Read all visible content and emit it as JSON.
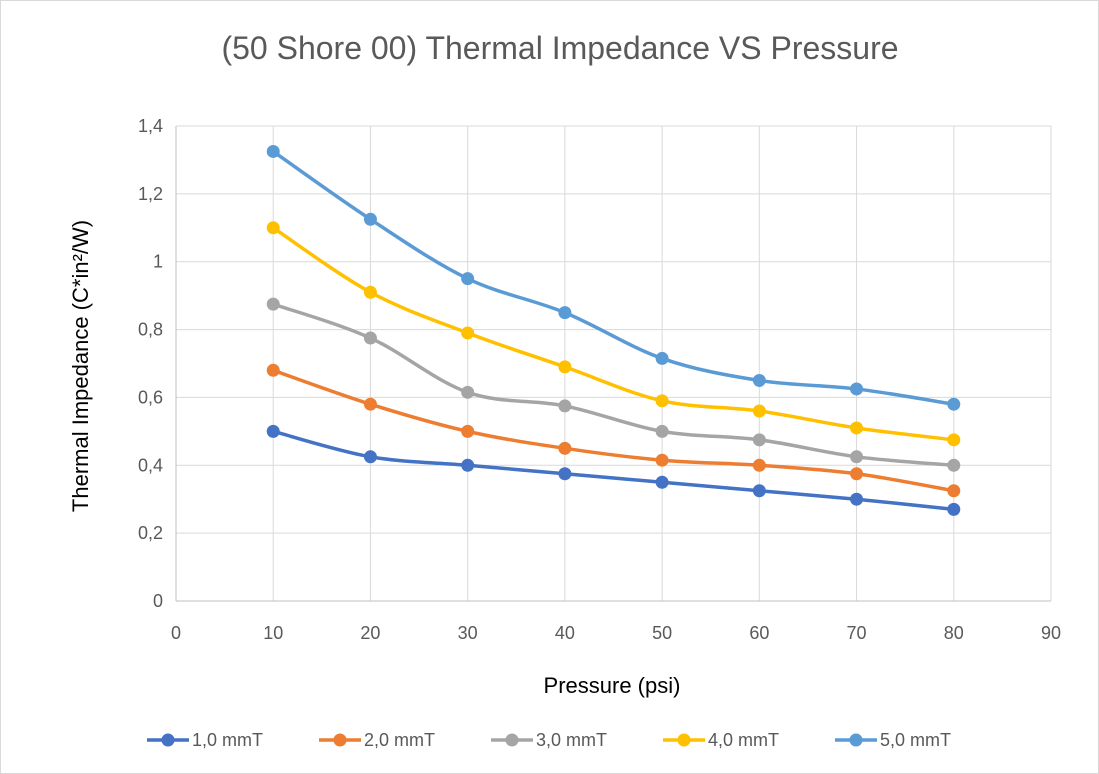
{
  "chart_data": {
    "type": "line",
    "title": "(50 Shore 00) Thermal Impedance VS Pressure",
    "xlabel": "Pressure (psi)",
    "ylabel": "Thermal Impedance (C*in²/W)",
    "xlim": [
      0,
      90
    ],
    "ylim": [
      0,
      1.4
    ],
    "x_ticks": [
      "0",
      "10",
      "20",
      "30",
      "40",
      "50",
      "60",
      "70",
      "80",
      "90"
    ],
    "y_ticks": [
      "0",
      "0,2",
      "0,4",
      "0,6",
      "0,8",
      "1",
      "1,2",
      "1,4"
    ],
    "x": [
      10,
      20,
      30,
      40,
      50,
      60,
      70,
      80
    ],
    "grid": true,
    "legend_position": "bottom",
    "series": [
      {
        "name": "1,0 mmT",
        "color": "#4472C4",
        "values": [
          0.5,
          0.425,
          0.4,
          0.375,
          0.35,
          0.325,
          0.3,
          0.27
        ]
      },
      {
        "name": "2,0 mmT",
        "color": "#ED7D31",
        "values": [
          0.68,
          0.58,
          0.5,
          0.45,
          0.415,
          0.4,
          0.375,
          0.325
        ]
      },
      {
        "name": "3,0 mmT",
        "color": "#A5A5A5",
        "values": [
          0.875,
          0.775,
          0.615,
          0.575,
          0.5,
          0.475,
          0.425,
          0.4
        ]
      },
      {
        "name": "4,0 mmT",
        "color": "#FFC000",
        "values": [
          1.1,
          0.91,
          0.79,
          0.69,
          0.59,
          0.56,
          0.51,
          0.475
        ]
      },
      {
        "name": "5,0 mmT",
        "color": "#5B9BD5",
        "values": [
          1.325,
          1.125,
          0.95,
          0.85,
          0.715,
          0.65,
          0.625,
          0.58
        ]
      }
    ]
  }
}
